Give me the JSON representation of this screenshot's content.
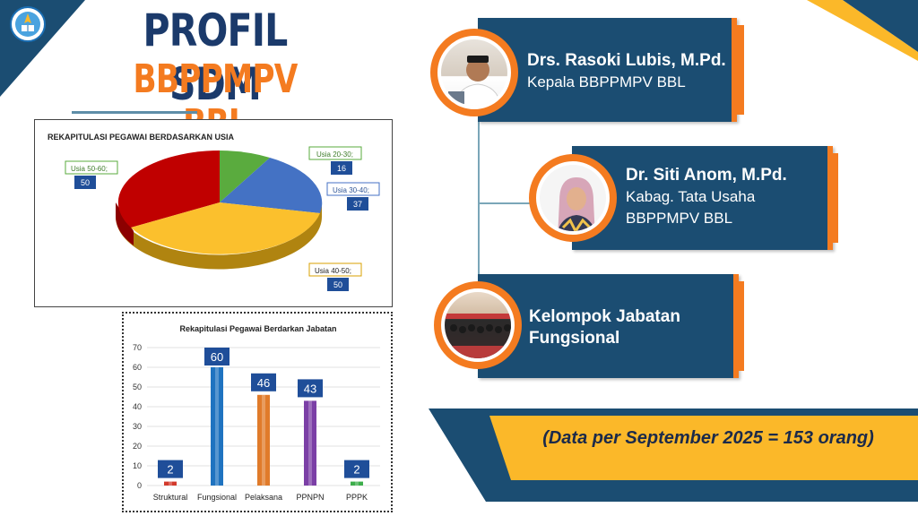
{
  "title": {
    "line1": "PROFIL SDM",
    "line2": "BBPPMPV BBL"
  },
  "logo_icon": "tut-wuri-handayani-logo",
  "colors": {
    "navy": "#1b4d72",
    "orange": "#f47b20",
    "yellow": "#fbb829",
    "dark_navy": "#1b3a6b"
  },
  "age_chart": {
    "title": "REKAPITULASI PEGAWAI BERDASARKAN USIA",
    "labels": [
      {
        "name": "Usia 20-30;",
        "value": "16"
      },
      {
        "name": "Usia 30-40;",
        "value": "37"
      },
      {
        "name": "Usia 40-50;",
        "value": "50"
      },
      {
        "name": "Usia 50-60;",
        "value": "50"
      }
    ]
  },
  "position_chart": {
    "title": "Rekapitulasi Pegawai Berdarkan Jabatan",
    "value_labels": [
      "2",
      "60",
      "46",
      "43",
      "2"
    ]
  },
  "chart_data": [
    {
      "type": "pie",
      "title": "REKAPITULASI PEGAWAI BERDASARKAN USIA",
      "categories": [
        "Usia 20-30",
        "Usia 30-40",
        "Usia 40-50",
        "Usia 50-60"
      ],
      "values": [
        16,
        37,
        50,
        50
      ],
      "colors": [
        "#5aab3e",
        "#4472c4",
        "#fbc02d",
        "#c00000"
      ]
    },
    {
      "type": "bar",
      "title": "Rekapitulasi Pegawai Berdarkan Jabatan",
      "categories": [
        "Struktural",
        "Fungsional",
        "Pelaksana",
        "PPNPN",
        "PPPK"
      ],
      "values": [
        2,
        60,
        46,
        43,
        2
      ],
      "colors": [
        "#d33a2c",
        "#1f73c0",
        "#e07b2a",
        "#7b3fa6",
        "#3dae4b"
      ],
      "ylim": [
        0,
        70
      ],
      "yticks": [
        0,
        10,
        20,
        30,
        40,
        50,
        60,
        70
      ],
      "grid": true
    }
  ],
  "people": [
    {
      "name": "Drs. Rasoki Lubis, M.Pd.",
      "role1": "Kepala BBPPMPV BBL",
      "role2": "",
      "photo_icon": "man-portrait-photo"
    },
    {
      "name": "Dr. Siti Anom, M.Pd.",
      "role1": "Kabag. Tata Usaha",
      "role2": "BBPPMPV BBL",
      "photo_icon": "woman-portrait-photo"
    },
    {
      "name": "Kelompok Jabatan",
      "role1": "Fungsional",
      "role2": "",
      "photo_icon": "group-photo"
    }
  ],
  "footer_note": "(Data per September 2025 = 153 orang)"
}
